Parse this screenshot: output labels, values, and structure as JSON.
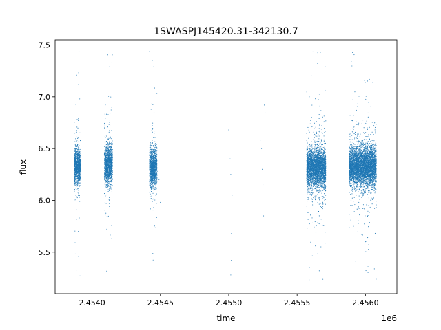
{
  "chart_data": {
    "type": "scatter",
    "title": "1SWASPJ145420.31-342130.7",
    "xlabel": "time",
    "ylabel": "flux",
    "x_offset_label": "1e6",
    "xlim": [
      2453730,
      2456230
    ],
    "ylim": [
      5.1,
      7.55
    ],
    "xticks": [
      2454000,
      2454500,
      2455000,
      2455500,
      2456000
    ],
    "xtick_labels": [
      "2.4540",
      "2.4545",
      "2.4550",
      "2.4555",
      "2.4560"
    ],
    "yticks": [
      5.5,
      6.0,
      6.5,
      7.0,
      7.5
    ],
    "ytick_labels": [
      "5.5",
      "6.0",
      "6.5",
      "7.0",
      "7.5"
    ],
    "grid": false,
    "legend": false,
    "marker_color": "#1f77b4",
    "series": [
      {
        "observing_seasons": [
          {
            "x_range": [
              2453870,
              2453915
            ],
            "flux_center": 6.33,
            "flux_min": 5.24,
            "flux_max": 7.45
          },
          {
            "x_range": [
              2454090,
              2454150
            ],
            "flux_center": 6.35,
            "flux_min": 5.22,
            "flux_max": 7.45
          },
          {
            "x_range": [
              2454420,
              2454475
            ],
            "flux_center": 6.32,
            "flux_min": 5.24,
            "flux_max": 7.45
          },
          {
            "x_range": [
              2455570,
              2455710
            ],
            "flux_center": 6.31,
            "flux_min": 5.21,
            "flux_max": 7.45
          },
          {
            "x_range": [
              2455880,
              2456080
            ],
            "flux_center": 6.33,
            "flux_min": 5.21,
            "flux_max": 7.46
          }
        ],
        "isolated_points": [
          [
            2454480,
            6.28
          ],
          [
            2454490,
            6.2
          ],
          [
            2454500,
            5.98
          ],
          [
            2455000,
            6.68
          ],
          [
            2455010,
            6.4
          ],
          [
            2455015,
            6.25
          ],
          [
            2455020,
            5.68
          ],
          [
            2455015,
            5.28
          ],
          [
            2455018,
            5.42
          ],
          [
            2455025,
            6.05
          ],
          [
            2455230,
            6.58
          ],
          [
            2455240,
            6.5
          ],
          [
            2455245,
            6.3
          ],
          [
            2455250,
            6.15
          ],
          [
            2455255,
            5.85
          ],
          [
            2455260,
            6.92
          ],
          [
            2455265,
            6.85
          ]
        ]
      }
    ]
  }
}
